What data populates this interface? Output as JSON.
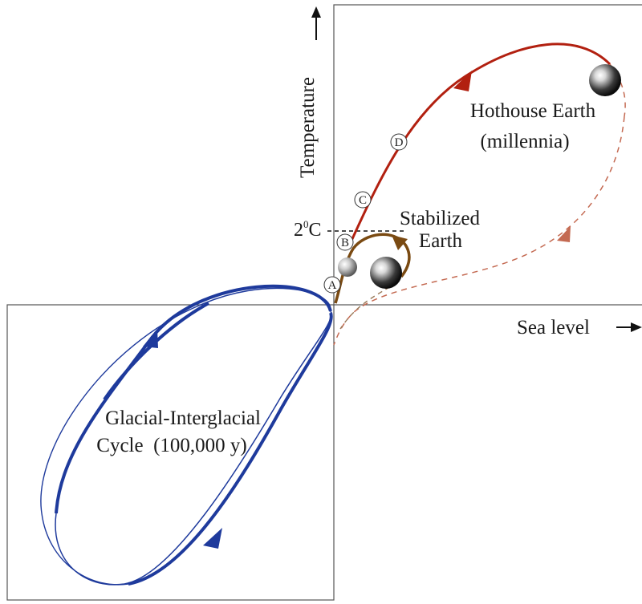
{
  "axes": {
    "y_label": "Temperature",
    "x_label": "Sea level",
    "threshold_label": "2",
    "threshold_superscript": "0",
    "threshold_unit": "C"
  },
  "regions": {
    "glacial": {
      "line1": "Glacial-Interglacial",
      "line2": "Cycle  (100,000 y)"
    },
    "stabilized": {
      "line1": "Stabilized",
      "line2": "Earth"
    },
    "hothouse": {
      "line1": "Hothouse Earth",
      "line2": "(millennia)"
    }
  },
  "markers": [
    "A",
    "B",
    "C",
    "D"
  ],
  "colors": {
    "glacial": "#1e3a9c",
    "hothouse": "#b22010",
    "hothouse_dashed": "#c46a52",
    "stabilized": "#7a4a12",
    "frame": "#555555"
  }
}
